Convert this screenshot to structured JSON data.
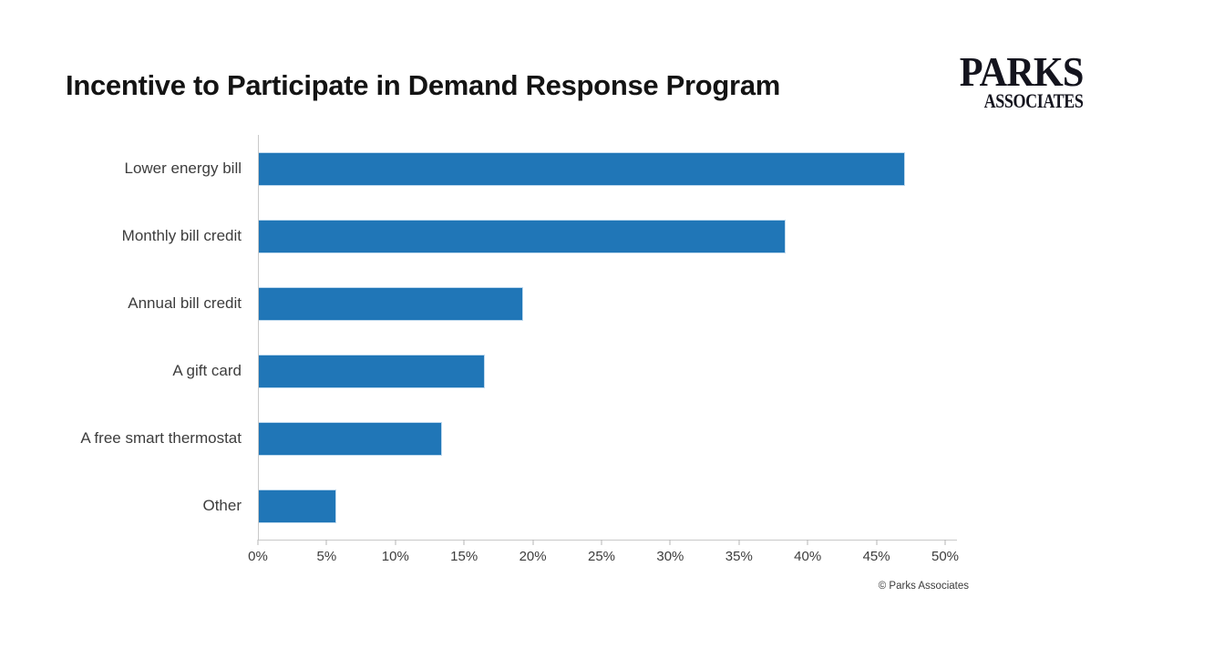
{
  "header": {
    "title": "Incentive to Participate in Demand Response Program",
    "logo": {
      "line1": "PARKS",
      "line2": "ASSOCIATES"
    }
  },
  "footer": {
    "copyright": "© Parks Associates"
  },
  "colors": {
    "bar": "#2076b7",
    "axis": "#c9c9c9",
    "text": "#3d3d3d",
    "title": "#141414"
  },
  "chart_data": {
    "type": "bar",
    "orientation": "horizontal",
    "title": "Incentive to Participate in Demand Response Program",
    "categories": [
      "Lower energy bill",
      "Monthly bill credit",
      "Annual bill credit",
      "A gift card",
      "A free smart thermostat",
      "Other"
    ],
    "values": [
      47.1,
      38.4,
      19.3,
      16.5,
      13.4,
      5.7
    ],
    "unit": "%",
    "xlabel": "",
    "ylabel": "",
    "xlim": [
      0,
      50
    ],
    "x_ticks": [
      "0%",
      "5%",
      "10%",
      "15%",
      "20%",
      "25%",
      "30%",
      "35%",
      "40%",
      "45%",
      "50%"
    ],
    "bar_color": "#2076b7",
    "grid": false,
    "legend": false,
    "data_labels": false
  }
}
